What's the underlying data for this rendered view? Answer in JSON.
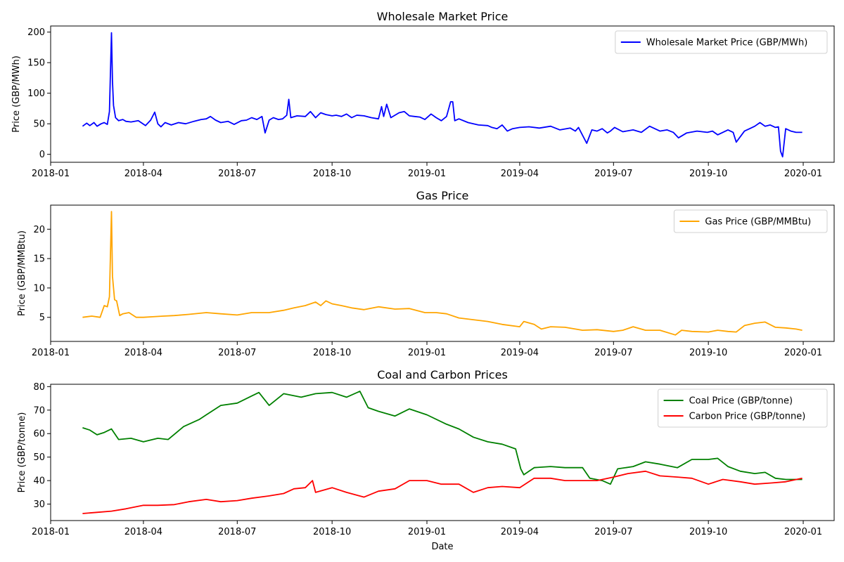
{
  "chart_data": [
    {
      "type": "line",
      "title": "Wholesale Market Price",
      "xlabel": "",
      "ylabel": "Price (GBP/MWh)",
      "x_range": [
        "2018-01-01",
        "2020-01-31"
      ],
      "ylim": [
        -13,
        210
      ],
      "y_ticks": [
        0,
        50,
        100,
        150,
        200
      ],
      "y_tick_labels": [
        "0",
        "50",
        "100",
        "150",
        "200"
      ],
      "x_tick_labels": [
        "2018-01",
        "2018-04",
        "2018-07",
        "2018-10",
        "2019-01",
        "2019-04",
        "2019-07",
        "2019-10",
        "2020-01"
      ],
      "legend": "top-right",
      "series": [
        {
          "name": "Wholesale Market Price (GBP/MWh)",
          "color": "#0000ff",
          "x": [
            "2018-02-01",
            "2018-02-05",
            "2018-02-08",
            "2018-02-12",
            "2018-02-15",
            "2018-02-19",
            "2018-02-22",
            "2018-02-25",
            "2018-02-27",
            "2018-03-01",
            "2018-03-02",
            "2018-03-03",
            "2018-03-05",
            "2018-03-08",
            "2018-03-12",
            "2018-03-15",
            "2018-03-20",
            "2018-03-27",
            "2018-04-03",
            "2018-04-08",
            "2018-04-12",
            "2018-04-15",
            "2018-04-18",
            "2018-04-22",
            "2018-04-28",
            "2018-05-05",
            "2018-05-12",
            "2018-05-20",
            "2018-05-27",
            "2018-06-01",
            "2018-06-05",
            "2018-06-10",
            "2018-06-15",
            "2018-06-22",
            "2018-06-28",
            "2018-07-05",
            "2018-07-10",
            "2018-07-15",
            "2018-07-20",
            "2018-07-25",
            "2018-07-28",
            "2018-08-01",
            "2018-08-05",
            "2018-08-10",
            "2018-08-14",
            "2018-08-18",
            "2018-08-20",
            "2018-08-22",
            "2018-08-28",
            "2018-09-05",
            "2018-09-10",
            "2018-09-15",
            "2018-09-20",
            "2018-09-25",
            "2018-10-01",
            "2018-10-05",
            "2018-10-10",
            "2018-10-15",
            "2018-10-20",
            "2018-10-25",
            "2018-11-01",
            "2018-11-08",
            "2018-11-15",
            "2018-11-18",
            "2018-11-20",
            "2018-11-23",
            "2018-11-27",
            "2018-12-01",
            "2018-12-05",
            "2018-12-10",
            "2018-12-15",
            "2018-12-20",
            "2018-12-25",
            "2018-12-30",
            "2019-01-05",
            "2019-01-10",
            "2019-01-15",
            "2019-01-20",
            "2019-01-24",
            "2019-01-26",
            "2019-01-28",
            "2019-02-01",
            "2019-02-10",
            "2019-02-20",
            "2019-03-01",
            "2019-03-05",
            "2019-03-10",
            "2019-03-15",
            "2019-03-20",
            "2019-03-25",
            "2019-04-01",
            "2019-04-10",
            "2019-04-20",
            "2019-05-01",
            "2019-05-10",
            "2019-05-20",
            "2019-05-25",
            "2019-05-28",
            "2019-06-05",
            "2019-06-10",
            "2019-06-15",
            "2019-06-20",
            "2019-06-25",
            "2019-06-28",
            "2019-07-02",
            "2019-07-10",
            "2019-07-20",
            "2019-07-28",
            "2019-08-05",
            "2019-08-15",
            "2019-08-22",
            "2019-08-28",
            "2019-09-02",
            "2019-09-10",
            "2019-09-20",
            "2019-09-30",
            "2019-10-05",
            "2019-10-10",
            "2019-10-20",
            "2019-10-25",
            "2019-10-28",
            "2019-11-05",
            "2019-11-10",
            "2019-11-15",
            "2019-11-20",
            "2019-11-25",
            "2019-11-30",
            "2019-12-05",
            "2019-12-08",
            "2019-12-10",
            "2019-12-12",
            "2019-12-15",
            "2019-12-20",
            "2019-12-25",
            "2019-12-31"
          ],
          "y": [
            46,
            51,
            47,
            52,
            46,
            50,
            52,
            49,
            70,
            199,
            120,
            80,
            60,
            55,
            57,
            54,
            53,
            55,
            47,
            56,
            69,
            50,
            45,
            52,
            48,
            52,
            50,
            54,
            57,
            58,
            62,
            56,
            52,
            54,
            49,
            55,
            56,
            60,
            57,
            62,
            35,
            56,
            60,
            57,
            58,
            64,
            90,
            60,
            63,
            62,
            70,
            60,
            68,
            65,
            63,
            64,
            62,
            66,
            60,
            64,
            63,
            60,
            58,
            78,
            62,
            82,
            60,
            64,
            68,
            70,
            63,
            62,
            61,
            57,
            66,
            60,
            55,
            62,
            86,
            86,
            55,
            58,
            52,
            48,
            47,
            44,
            42,
            48,
            38,
            42,
            44,
            45,
            43,
            46,
            40,
            43,
            38,
            44,
            18,
            40,
            38,
            42,
            35,
            38,
            44,
            37,
            40,
            36,
            46,
            38,
            40,
            36,
            27,
            35,
            38,
            36,
            38,
            32,
            40,
            36,
            20,
            38,
            42,
            46,
            52,
            46,
            48,
            44,
            45,
            5,
            -4,
            42,
            38,
            36,
            36
          ]
        }
      ]
    },
    {
      "type": "line",
      "title": "Gas Price",
      "xlabel": "",
      "ylabel": "Price (GBP/MMBtu)",
      "x_range": [
        "2018-01-01",
        "2020-01-31"
      ],
      "ylim": [
        0.9,
        24.1
      ],
      "y_ticks": [
        5,
        10,
        15,
        20
      ],
      "y_tick_labels": [
        "5",
        "10",
        "15",
        "20"
      ],
      "x_tick_labels": [
        "2018-01",
        "2018-04",
        "2018-07",
        "2018-10",
        "2019-01",
        "2019-04",
        "2019-07",
        "2019-10",
        "2020-01"
      ],
      "legend": "top-right",
      "series": [
        {
          "name": "Gas Price (GBP/MMBtu)",
          "color": "#ffa500",
          "x": [
            "2018-02-01",
            "2018-02-10",
            "2018-02-18",
            "2018-02-22",
            "2018-02-25",
            "2018-02-27",
            "2018-03-01",
            "2018-03-02",
            "2018-03-04",
            "2018-03-06",
            "2018-03-09",
            "2018-03-12",
            "2018-03-18",
            "2018-03-25",
            "2018-04-01",
            "2018-04-10",
            "2018-04-20",
            "2018-05-01",
            "2018-05-15",
            "2018-06-01",
            "2018-06-15",
            "2018-07-01",
            "2018-07-15",
            "2018-08-01",
            "2018-08-15",
            "2018-08-25",
            "2018-09-05",
            "2018-09-15",
            "2018-09-20",
            "2018-09-25",
            "2018-10-01",
            "2018-10-10",
            "2018-10-20",
            "2018-11-01",
            "2018-11-15",
            "2018-12-01",
            "2018-12-15",
            "2018-12-30",
            "2019-01-10",
            "2019-01-20",
            "2019-02-01",
            "2019-02-15",
            "2019-03-01",
            "2019-03-15",
            "2019-04-01",
            "2019-04-05",
            "2019-04-15",
            "2019-04-22",
            "2019-05-01",
            "2019-05-15",
            "2019-06-01",
            "2019-06-15",
            "2019-07-01",
            "2019-07-10",
            "2019-07-20",
            "2019-08-01",
            "2019-08-15",
            "2019-08-30",
            "2019-09-05",
            "2019-09-15",
            "2019-10-01",
            "2019-10-10",
            "2019-10-20",
            "2019-10-28",
            "2019-11-05",
            "2019-11-15",
            "2019-11-25",
            "2019-12-05",
            "2019-12-15",
            "2019-12-25",
            "2019-12-31"
          ],
          "y": [
            5.0,
            5.2,
            5.0,
            7.0,
            6.8,
            8.5,
            23,
            12,
            8,
            7.8,
            5.3,
            5.6,
            5.8,
            5.0,
            5.0,
            5.1,
            5.2,
            5.3,
            5.5,
            5.8,
            5.6,
            5.4,
            5.8,
            5.8,
            6.2,
            6.6,
            7.0,
            7.6,
            7.0,
            7.8,
            7.3,
            7.0,
            6.6,
            6.3,
            6.8,
            6.4,
            6.5,
            5.8,
            5.8,
            5.6,
            4.9,
            4.6,
            4.3,
            3.8,
            3.4,
            4.3,
            3.8,
            3.0,
            3.4,
            3.3,
            2.8,
            2.9,
            2.6,
            2.8,
            3.4,
            2.8,
            2.8,
            2.0,
            2.8,
            2.6,
            2.5,
            2.8,
            2.6,
            2.5,
            3.6,
            4.0,
            4.2,
            3.3,
            3.2,
            3.0,
            2.8
          ]
        }
      ]
    },
    {
      "type": "line",
      "title": "Coal and Carbon Prices",
      "xlabel": "Date",
      "ylabel": "Price (GBP/tonne)",
      "x_range": [
        "2018-01-01",
        "2020-01-31"
      ],
      "ylim": [
        23,
        81
      ],
      "y_ticks": [
        30,
        40,
        50,
        60,
        70,
        80
      ],
      "y_tick_labels": [
        "30",
        "40",
        "50",
        "60",
        "70",
        "80"
      ],
      "x_tick_labels": [
        "2018-01",
        "2018-04",
        "2018-07",
        "2018-10",
        "2019-01",
        "2019-04",
        "2019-07",
        "2019-10",
        "2020-01"
      ],
      "legend": "top-right",
      "series": [
        {
          "name": "Coal Price (GBP/tonne)",
          "color": "#008000",
          "x": [
            "2018-02-01",
            "2018-02-08",
            "2018-02-15",
            "2018-02-22",
            "2018-03-01",
            "2018-03-08",
            "2018-03-20",
            "2018-04-01",
            "2018-04-15",
            "2018-04-25",
            "2018-05-10",
            "2018-05-25",
            "2018-06-01",
            "2018-06-15",
            "2018-07-01",
            "2018-07-15",
            "2018-07-22",
            "2018-08-01",
            "2018-08-15",
            "2018-09-01",
            "2018-09-15",
            "2018-10-01",
            "2018-10-15",
            "2018-10-28",
            "2018-11-05",
            "2018-11-15",
            "2018-12-01",
            "2018-12-15",
            "2019-01-01",
            "2019-01-20",
            "2019-02-01",
            "2019-02-15",
            "2019-03-01",
            "2019-03-15",
            "2019-03-28",
            "2019-04-02",
            "2019-04-05",
            "2019-04-15",
            "2019-05-01",
            "2019-05-15",
            "2019-06-01",
            "2019-06-08",
            "2019-06-20",
            "2019-06-28",
            "2019-07-05",
            "2019-07-20",
            "2019-08-01",
            "2019-08-15",
            "2019-09-01",
            "2019-09-15",
            "2019-10-01",
            "2019-10-10",
            "2019-10-20",
            "2019-11-01",
            "2019-11-15",
            "2019-11-25",
            "2019-12-05",
            "2019-12-15",
            "2019-12-31"
          ],
          "y": [
            62.5,
            61.5,
            59.5,
            60.5,
            62,
            57.5,
            58,
            56.5,
            58,
            57.5,
            63,
            66,
            68,
            72,
            73,
            76,
            77.5,
            72,
            77,
            75.5,
            77,
            77.5,
            75.5,
            78,
            71,
            69.5,
            67.5,
            70.5,
            68,
            64,
            62,
            58.5,
            56.5,
            55.5,
            53.5,
            45,
            42.5,
            45.5,
            46,
            45.5,
            45.5,
            41,
            40,
            38.5,
            45,
            46,
            48,
            47,
            45.5,
            49,
            49,
            49.5,
            46,
            44,
            43,
            43.5,
            41,
            40.5,
            40.5
          ]
        },
        {
          "name": "Carbon Price (GBP/tonne)",
          "color": "#ff0000",
          "x": [
            "2018-02-01",
            "2018-02-15",
            "2018-03-01",
            "2018-03-15",
            "2018-04-01",
            "2018-04-15",
            "2018-05-01",
            "2018-05-15",
            "2018-06-01",
            "2018-06-15",
            "2018-07-01",
            "2018-07-15",
            "2018-08-01",
            "2018-08-15",
            "2018-08-25",
            "2018-09-05",
            "2018-09-12",
            "2018-09-15",
            "2018-10-01",
            "2018-10-15",
            "2018-11-01",
            "2018-11-15",
            "2018-12-01",
            "2018-12-15",
            "2019-01-01",
            "2019-01-15",
            "2019-02-01",
            "2019-02-15",
            "2019-03-01",
            "2019-03-15",
            "2019-04-01",
            "2019-04-15",
            "2019-05-01",
            "2019-05-15",
            "2019-06-01",
            "2019-06-15",
            "2019-07-01",
            "2019-07-15",
            "2019-08-01",
            "2019-08-15",
            "2019-09-01",
            "2019-09-15",
            "2019-10-01",
            "2019-10-15",
            "2019-11-01",
            "2019-11-15",
            "2019-12-01",
            "2019-12-15",
            "2019-12-31"
          ],
          "y": [
            26,
            26.5,
            27,
            28,
            29.5,
            29.5,
            29.8,
            31,
            32,
            31,
            31.5,
            32.5,
            33.5,
            34.5,
            36.5,
            37,
            40,
            35,
            37,
            35,
            33,
            35.5,
            36.5,
            40,
            40,
            38.5,
            38.5,
            35,
            37,
            37.5,
            37,
            41,
            41,
            40,
            40,
            40,
            41.5,
            43,
            44,
            42,
            41.5,
            41,
            38.5,
            40.5,
            39.5,
            38.5,
            39,
            39.5,
            41
          ]
        }
      ]
    }
  ]
}
